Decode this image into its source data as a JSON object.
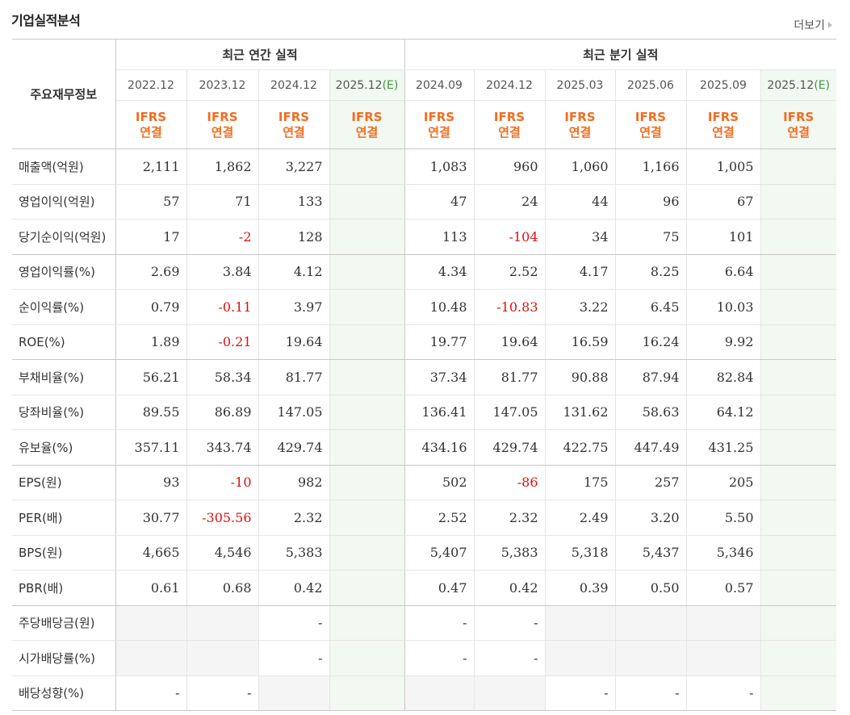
{
  "title": "기업실적분석",
  "more_label": "더보기",
  "corner_label": "주요재무정보",
  "annual_label": "최근 연간 실적",
  "quarter_label": "최근 분기 실적",
  "ifrs_label_1": "IFRS",
  "ifrs_label_2": "연결",
  "periods": [
    {
      "label": "2022.12"
    },
    {
      "label": "2023.12"
    },
    {
      "label": "2024.12"
    },
    {
      "label": "2025.12",
      "est": "(E)"
    },
    {
      "label": "2024.09"
    },
    {
      "label": "2024.12"
    },
    {
      "label": "2025.03"
    },
    {
      "label": "2025.06"
    },
    {
      "label": "2025.09"
    },
    {
      "label": "2025.12",
      "est": "(E)"
    }
  ],
  "rows": [
    {
      "name": "매출액(억원)",
      "values": [
        "2,111",
        "1,862",
        "3,227",
        "",
        "1,083",
        "960",
        "1,060",
        "1,166",
        "1,005",
        ""
      ]
    },
    {
      "name": "영업이익(억원)",
      "values": [
        "57",
        "71",
        "133",
        "",
        "47",
        "24",
        "44",
        "96",
        "67",
        ""
      ]
    },
    {
      "name": "당기순이익(억원)",
      "values": [
        "17",
        "-2",
        "128",
        "",
        "113",
        "-104",
        "34",
        "75",
        "101",
        ""
      ]
    },
    {
      "name": "영업이익률(%)",
      "values": [
        "2.69",
        "3.84",
        "4.12",
        "",
        "4.34",
        "2.52",
        "4.17",
        "8.25",
        "6.64",
        ""
      ]
    },
    {
      "name": "순이익률(%)",
      "values": [
        "0.79",
        "-0.11",
        "3.97",
        "",
        "10.48",
        "-10.83",
        "3.22",
        "6.45",
        "10.03",
        ""
      ]
    },
    {
      "name": "ROE(%)",
      "values": [
        "1.89",
        "-0.21",
        "19.64",
        "",
        "19.77",
        "19.64",
        "16.59",
        "16.24",
        "9.92",
        ""
      ]
    },
    {
      "name": "부채비율(%)",
      "values": [
        "56.21",
        "58.34",
        "81.77",
        "",
        "37.34",
        "81.77",
        "90.88",
        "87.94",
        "82.84",
        ""
      ]
    },
    {
      "name": "당좌비율(%)",
      "values": [
        "89.55",
        "86.89",
        "147.05",
        "",
        "136.41",
        "147.05",
        "131.62",
        "58.63",
        "64.12",
        ""
      ]
    },
    {
      "name": "유보율(%)",
      "values": [
        "357.11",
        "343.74",
        "429.74",
        "",
        "434.16",
        "429.74",
        "422.75",
        "447.49",
        "431.25",
        ""
      ]
    },
    {
      "name": "EPS(원)",
      "values": [
        "93",
        "-10",
        "982",
        "",
        "502",
        "-86",
        "175",
        "257",
        "205",
        ""
      ]
    },
    {
      "name": "PER(배)",
      "values": [
        "30.77",
        "-305.56",
        "2.32",
        "",
        "2.52",
        "2.32",
        "2.49",
        "3.20",
        "5.50",
        ""
      ]
    },
    {
      "name": "BPS(원)",
      "values": [
        "4,665",
        "4,546",
        "5,383",
        "",
        "5,407",
        "5,383",
        "5,318",
        "5,437",
        "5,346",
        ""
      ]
    },
    {
      "name": "PBR(배)",
      "values": [
        "0.61",
        "0.68",
        "0.42",
        "",
        "0.47",
        "0.42",
        "0.39",
        "0.50",
        "0.57",
        ""
      ]
    },
    {
      "name": "주당배당금(원)",
      "values": [
        "",
        "",
        "-",
        "",
        "-",
        "-",
        "",
        "",
        "",
        ""
      ],
      "bg": [
        "g",
        "g",
        "",
        "e",
        "",
        "",
        "g",
        "g",
        "g",
        "e"
      ]
    },
    {
      "name": "시가배당률(%)",
      "values": [
        "",
        "",
        "-",
        "",
        "-",
        "-",
        "",
        "",
        "",
        ""
      ],
      "bg": [
        "g",
        "g",
        "",
        "e",
        "",
        "",
        "g",
        "g",
        "g",
        "e"
      ]
    },
    {
      "name": "배당성향(%)",
      "values": [
        "-",
        "-",
        "",
        "",
        "",
        "",
        "-",
        "-",
        "-",
        ""
      ],
      "bg": [
        "",
        "",
        "g",
        "e",
        "g",
        "g",
        "",
        "",
        "",
        "e"
      ]
    }
  ]
}
